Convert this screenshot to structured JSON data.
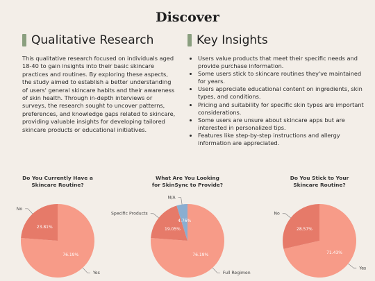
{
  "page_title": "Discover",
  "qualitative": {
    "heading": "Qualitative Research",
    "body": "This qualitative research focused on individuals aged 18-40 to gain insights into their basic skincare practices and routines. By exploring these aspects, the study aimed to establish a better understanding of users' general skincare habits and their awareness of skin health. Through in-depth interviews or surveys, the research sought to uncover patterns, preferences, and knowledge gaps related to skincare, providing valuable insights for developing tailored skincare products or educational initiatives."
  },
  "insights": {
    "heading": "Key Insights",
    "items": [
      "Users value products that meet their specific needs and provide purchase information.",
      "Some users stick to skincare routines they've maintained for years.",
      "Users appreciate educational content on ingredients, skin types, and conditions.",
      "Pricing and suitability for specific skin types are important considerations.",
      "Some users are unsure about skincare apps but are interested in personalized tips.",
      "Features like step-by-step instructions and allergy information are appreciated."
    ]
  },
  "colors": {
    "slice_primary": "#f79b88",
    "slice_secondary": "#e67a69",
    "slice_tertiary": "#8aaed1",
    "accent_bar": "#8a9f7f"
  },
  "chart_data": [
    {
      "type": "pie",
      "title_lines": [
        "Do You Currently Have a",
        "Skincare Routine?"
      ],
      "slices": [
        {
          "name": "Yes",
          "value": 76.19,
          "label": "76.19%",
          "color": "#f79b88"
        },
        {
          "name": "No",
          "value": 23.81,
          "label": "23.81%",
          "color": "#e67a69"
        }
      ]
    },
    {
      "type": "pie",
      "title_lines": [
        "What Are You Looking",
        "for SkinSync to Provide?"
      ],
      "slices": [
        {
          "name": "Full Regimen",
          "value": 76.19,
          "label": "76.19%",
          "color": "#f79b88"
        },
        {
          "name": "Specific Products",
          "value": 19.05,
          "label": "19.05%",
          "color": "#e67a69"
        },
        {
          "name": "N/A",
          "value": 4.76,
          "label": "4.76%",
          "color": "#8aaed1"
        }
      ]
    },
    {
      "type": "pie",
      "title_lines": [
        "Do You Stick to Your",
        "Skincare Routine?"
      ],
      "slices": [
        {
          "name": "Yes",
          "value": 71.43,
          "label": "71.43%",
          "color": "#f79b88"
        },
        {
          "name": "No",
          "value": 28.57,
          "label": "28.57%",
          "color": "#e67a69"
        }
      ]
    }
  ]
}
